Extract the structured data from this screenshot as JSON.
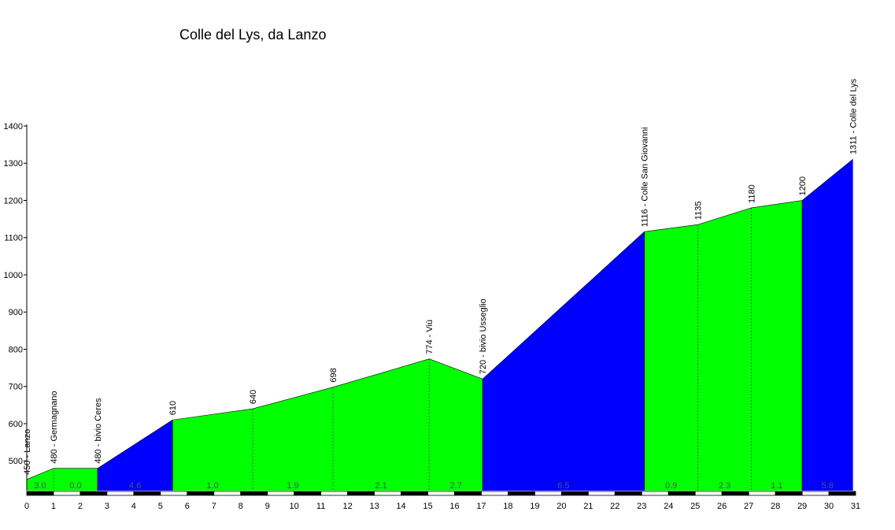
{
  "chart_data": {
    "type": "area",
    "title": "Colle del Lys, da Lanzo",
    "xlabel": "",
    "ylabel": "",
    "xlim": [
      0,
      31
    ],
    "ylim": [
      420,
      1400
    ],
    "y_ticks": [
      500,
      600,
      700,
      800,
      900,
      1000,
      1100,
      1200,
      1300,
      1400
    ],
    "x_ticks": [
      0,
      1,
      2,
      3,
      4,
      5,
      6,
      7,
      8,
      9,
      10,
      11,
      12,
      13,
      14,
      15,
      16,
      17,
      18,
      19,
      20,
      21,
      22,
      23,
      24,
      25,
      26,
      27,
      28,
      29,
      30,
      31
    ],
    "grid": false,
    "colors": {
      "green": "#00ff00",
      "blue": "#0000ff"
    },
    "points": [
      {
        "x": 0.0,
        "y": 450,
        "label": "450 - Lanzo"
      },
      {
        "x": 1.0,
        "y": 480,
        "label": "480 - Germagnano"
      },
      {
        "x": 2.65,
        "y": 480,
        "label": "480 - bivio Ceres"
      },
      {
        "x": 5.45,
        "y": 610,
        "label": "610"
      },
      {
        "x": 8.45,
        "y": 640,
        "label": "640"
      },
      {
        "x": 11.45,
        "y": 698,
        "label": "698"
      },
      {
        "x": 15.05,
        "y": 774,
        "label": "774 - Viù"
      },
      {
        "x": 17.05,
        "y": 720,
        "label": "720 - bivio Usseglio"
      },
      {
        "x": 23.1,
        "y": 1116,
        "label": "1116 - Colle San Giovanni"
      },
      {
        "x": 25.1,
        "y": 1135,
        "label": "1135"
      },
      {
        "x": 27.1,
        "y": 1180,
        "label": "1180"
      },
      {
        "x": 29.0,
        "y": 1200,
        "label": "1200"
      },
      {
        "x": 30.9,
        "y": 1311,
        "label": "1311 - Colle del Lys"
      }
    ],
    "segments": [
      {
        "gradient": "3.0",
        "color": "green"
      },
      {
        "gradient": "0.0",
        "color": "green"
      },
      {
        "gradient": "4.6",
        "color": "blue"
      },
      {
        "gradient": "1.0",
        "color": "green"
      },
      {
        "gradient": "1.9",
        "color": "green"
      },
      {
        "gradient": "2.1",
        "color": "green"
      },
      {
        "gradient": "2.7",
        "color": "green"
      },
      {
        "gradient": "6.5",
        "color": "blue"
      },
      {
        "gradient": "0.9",
        "color": "green"
      },
      {
        "gradient": "2.3",
        "color": "green"
      },
      {
        "gradient": "1.1",
        "color": "green"
      },
      {
        "gradient": "5.8",
        "color": "blue"
      }
    ]
  }
}
